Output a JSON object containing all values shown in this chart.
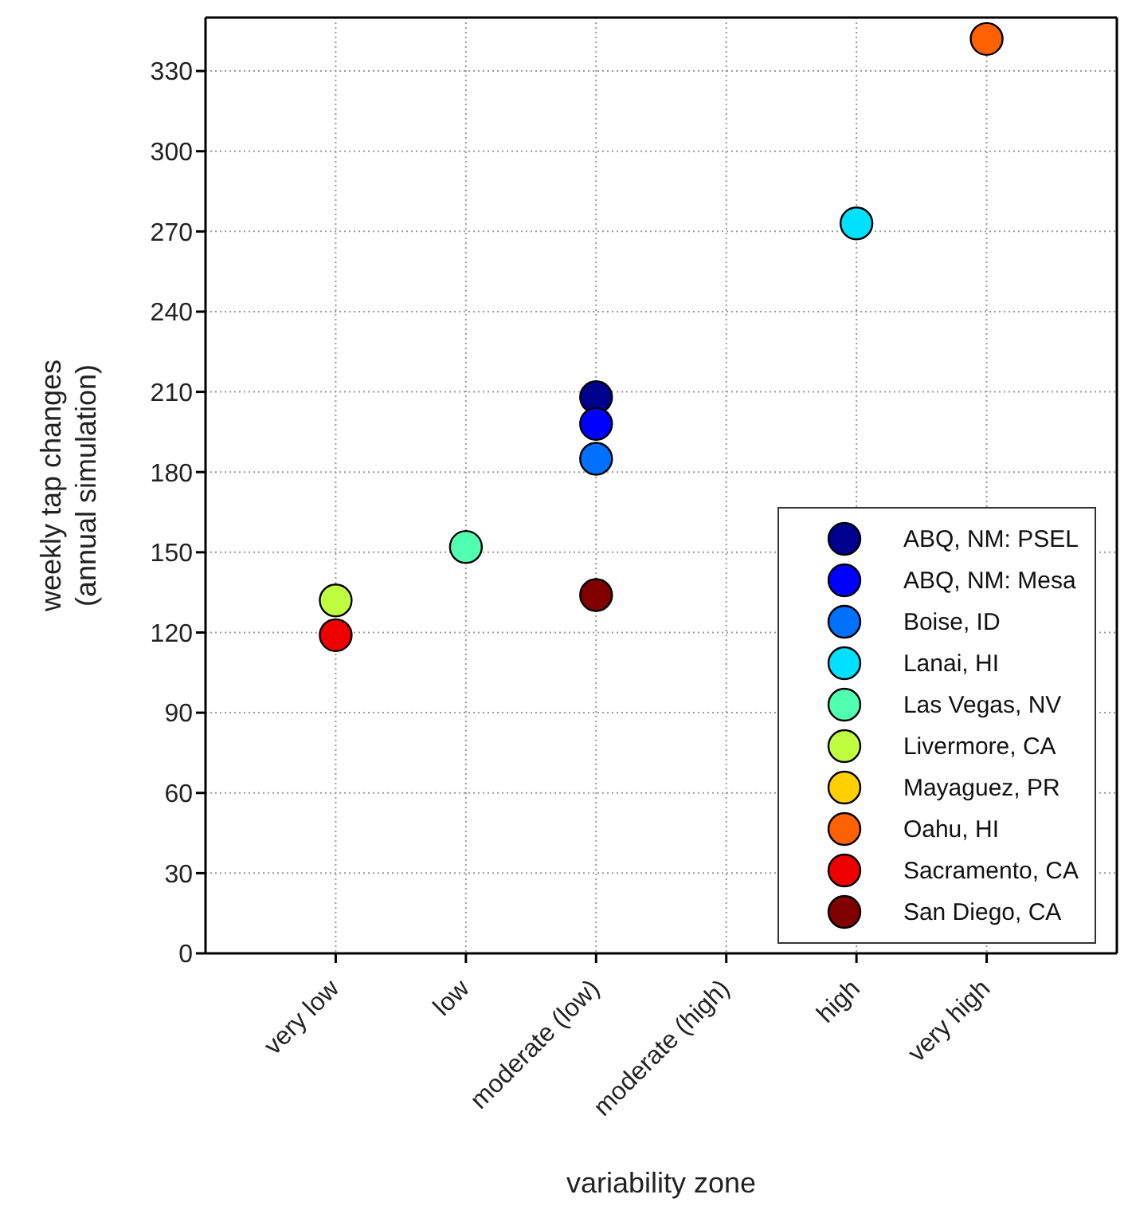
{
  "chart_data": {
    "type": "scatter",
    "xlabel": "variability zone",
    "ylabel": "weekly tap changes\n(annual simulation)",
    "categories": [
      "very low",
      "low",
      "moderate (low)",
      "moderate (high)",
      "high",
      "very high"
    ],
    "ylim": [
      0,
      350
    ],
    "yticks": [
      0,
      30,
      60,
      90,
      120,
      150,
      180,
      210,
      240,
      270,
      300,
      330
    ],
    "grid": true,
    "legend": "right",
    "marker": "circle",
    "series": [
      {
        "name": "ABQ, NM: PSEL",
        "color": "#00008f",
        "values": [
          null,
          null,
          208,
          null,
          null,
          null
        ]
      },
      {
        "name": "ABQ, NM: Mesa",
        "color": "#0000ff",
        "values": [
          null,
          null,
          198,
          null,
          null,
          null
        ]
      },
      {
        "name": "Boise, ID",
        "color": "#0070ff",
        "values": [
          null,
          null,
          185,
          null,
          null,
          null
        ]
      },
      {
        "name": "Lanai, HI",
        "color": "#00e0ff",
        "values": [
          null,
          null,
          null,
          null,
          273,
          null
        ]
      },
      {
        "name": "Las Vegas, NV",
        "color": "#50ffb0",
        "values": [
          null,
          152,
          null,
          null,
          null,
          null
        ]
      },
      {
        "name": "Livermore, CA",
        "color": "#bfff40",
        "values": [
          132,
          null,
          null,
          null,
          null,
          null
        ]
      },
      {
        "name": "Mayaguez, PR",
        "color": "#ffcf00",
        "values": [
          null,
          null,
          null,
          null,
          null,
          null
        ]
      },
      {
        "name": "Oahu, HI",
        "color": "#ff6000",
        "values": [
          null,
          null,
          null,
          null,
          null,
          342
        ]
      },
      {
        "name": "Sacramento, CA",
        "color": "#ef0000",
        "values": [
          119,
          null,
          null,
          null,
          null,
          null
        ]
      },
      {
        "name": "San Diego, CA",
        "color": "#800000",
        "values": [
          null,
          null,
          134,
          null,
          null,
          null
        ]
      }
    ]
  }
}
